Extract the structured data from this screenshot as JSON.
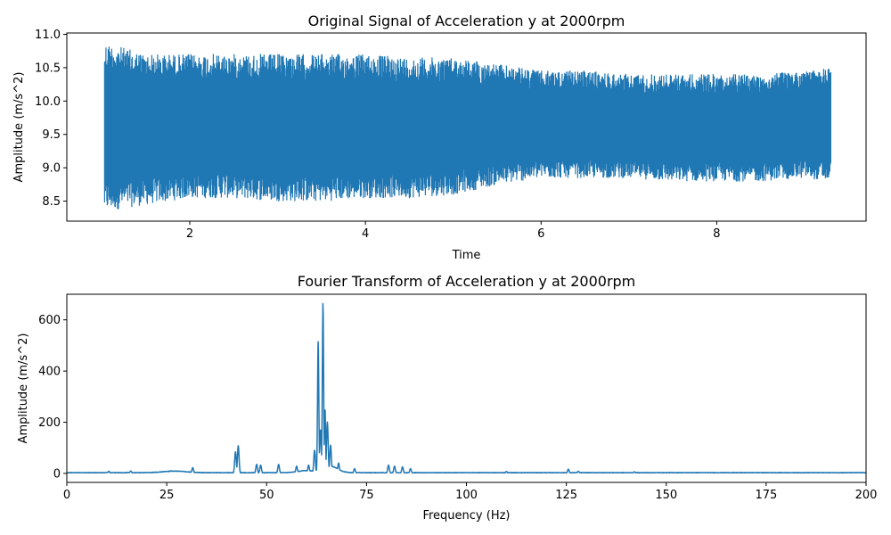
{
  "chart_data": [
    {
      "type": "line",
      "title": "Original Signal of Acceleration y at 2000rpm",
      "xlabel": "Time",
      "ylabel": "Amplitude (m/s^2)",
      "xlim": [
        0.6,
        9.7
      ],
      "ylim": [
        8.2,
        11.02
      ],
      "xticks": [
        2,
        4,
        6,
        8
      ],
      "yticks": [
        8.5,
        9.0,
        9.5,
        10.0,
        10.5,
        11.0
      ],
      "xtick_labels": [
        "2",
        "4",
        "6",
        "8"
      ],
      "ytick_labels": [
        "8.5",
        "9.0",
        "9.5",
        "10.0",
        "10.5",
        "11.0"
      ],
      "grid": false,
      "legend": "none",
      "series": [
        {
          "color": "#1f77b4",
          "x_start": 1.03,
          "x_end": 9.3,
          "envelope": [
            {
              "t": 1.03,
              "min": 8.35,
              "max": 10.88
            },
            {
              "t": 1.5,
              "min": 8.45,
              "max": 10.7
            },
            {
              "t": 2.0,
              "min": 8.55,
              "max": 10.7
            },
            {
              "t": 2.5,
              "min": 8.55,
              "max": 10.7
            },
            {
              "t": 3.0,
              "min": 8.5,
              "max": 10.7
            },
            {
              "t": 3.5,
              "min": 8.5,
              "max": 10.7
            },
            {
              "t": 4.0,
              "min": 8.55,
              "max": 10.7
            },
            {
              "t": 4.5,
              "min": 8.55,
              "max": 10.65
            },
            {
              "t": 5.0,
              "min": 8.6,
              "max": 10.65
            },
            {
              "t": 5.5,
              "min": 8.75,
              "max": 10.55
            },
            {
              "t": 6.0,
              "min": 8.85,
              "max": 10.45
            },
            {
              "t": 6.5,
              "min": 8.85,
              "max": 10.45
            },
            {
              "t": 7.0,
              "min": 8.85,
              "max": 10.4
            },
            {
              "t": 7.5,
              "min": 8.8,
              "max": 10.4
            },
            {
              "t": 8.0,
              "min": 8.8,
              "max": 10.4
            },
            {
              "t": 8.5,
              "min": 8.8,
              "max": 10.4
            },
            {
              "t": 9.0,
              "min": 8.85,
              "max": 10.45
            },
            {
              "t": 9.3,
              "min": 8.8,
              "max": 10.5
            }
          ]
        }
      ]
    },
    {
      "type": "line",
      "title": "Fourier Transform of Acceleration y at 2000rpm",
      "xlabel": "Frequency (Hz)",
      "ylabel": "Amplitude (m/s^2)",
      "xlim": [
        0,
        200
      ],
      "ylim": [
        -35,
        700
      ],
      "xticks": [
        0,
        25,
        50,
        75,
        100,
        125,
        150,
        175,
        200
      ],
      "yticks": [
        0,
        200,
        400,
        600
      ],
      "xtick_labels": [
        "0",
        "25",
        "50",
        "75",
        "100",
        "125",
        "150",
        "175",
        "200"
      ],
      "ytick_labels": [
        "0",
        "200",
        "400",
        "600"
      ],
      "grid": false,
      "legend": "none",
      "series": [
        {
          "color": "#1f77b4",
          "baseline": 3,
          "peaks": [
            {
              "f": 10.5,
              "a": 8
            },
            {
              "f": 16,
              "a": 9
            },
            {
              "f": 26,
              "a": 10
            },
            {
              "f": 31.5,
              "a": 22
            },
            {
              "f": 42.2,
              "a": 85
            },
            {
              "f": 42.9,
              "a": 108
            },
            {
              "f": 47.5,
              "a": 35
            },
            {
              "f": 48.5,
              "a": 32
            },
            {
              "f": 53,
              "a": 35
            },
            {
              "f": 57.5,
              "a": 28
            },
            {
              "f": 60.5,
              "a": 32
            },
            {
              "f": 62,
              "a": 90
            },
            {
              "f": 62.9,
              "a": 518
            },
            {
              "f": 63.5,
              "a": 170
            },
            {
              "f": 64.1,
              "a": 668
            },
            {
              "f": 64.6,
              "a": 255
            },
            {
              "f": 65.2,
              "a": 200
            },
            {
              "f": 66,
              "a": 110
            },
            {
              "f": 68,
              "a": 40
            },
            {
              "f": 72,
              "a": 18
            },
            {
              "f": 80.5,
              "a": 32
            },
            {
              "f": 82,
              "a": 28
            },
            {
              "f": 84,
              "a": 25
            },
            {
              "f": 86,
              "a": 18
            },
            {
              "f": 110,
              "a": 7
            },
            {
              "f": 125.5,
              "a": 16
            },
            {
              "f": 128,
              "a": 8
            },
            {
              "f": 142,
              "a": 6
            }
          ]
        }
      ]
    }
  ]
}
